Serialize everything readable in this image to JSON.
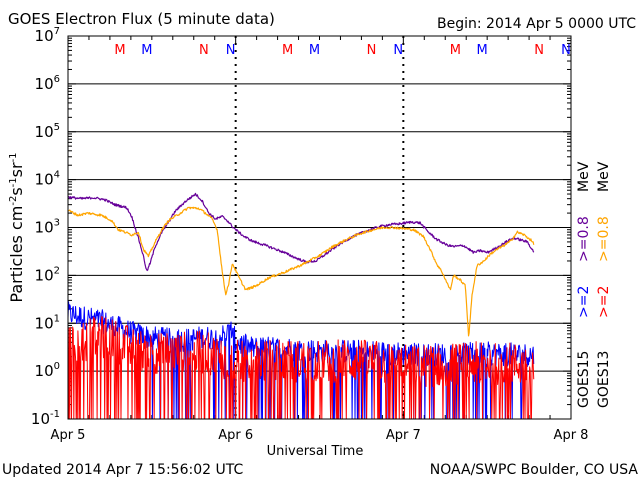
{
  "header": {
    "title": "GOES Electron Flux (5 minute data)",
    "begin": "Begin: 2014 Apr 5 0000 UTC"
  },
  "footer": {
    "updated": "Updated 2014 Apr  7 15:56:02 UTC",
    "source": "NOAA/SWPC Boulder, CO USA"
  },
  "right_labels": {
    "goes13": "GOES13",
    "goes15": "GOES15",
    "e2_goes13": ">=2",
    "e08_goes13": ">=0.8",
    "e2_goes15": ">=2",
    "e08_goes15": ">=0.8",
    "unit": "MeV"
  },
  "colors": {
    "goes15_e08": "#660099",
    "goes13_e08": "#ffa500",
    "goes15_e2": "#0000ff",
    "goes13_e2": "#ff0000",
    "marker_M": "#ff0000",
    "marker_N_red": "#ff0000",
    "marker_N_blue": "#0000ff",
    "marker_M_blue": "#0000ff"
  },
  "chart_data": {
    "type": "line",
    "title": "GOES Electron Flux (5 minute data)",
    "xlabel": "Universal Time",
    "ylabel": "Particles cm⁻²s⁻¹sr⁻¹",
    "y_scale": "log",
    "ylim": [
      0.1,
      10000000
    ],
    "xlim_days": [
      0,
      3
    ],
    "x_ticks": [
      {
        "day": 0,
        "label": "Apr 5"
      },
      {
        "day": 1,
        "label": "Apr 6"
      },
      {
        "day": 2,
        "label": "Apr 7"
      },
      {
        "day": 3,
        "label": "Apr 8"
      }
    ],
    "y_ticks": [
      {
        "exp": -1,
        "mant": "10",
        "sup": "-1"
      },
      {
        "exp": 0,
        "mant": "10",
        "sup": "0"
      },
      {
        "exp": 1,
        "mant": "10",
        "sup": "1"
      },
      {
        "exp": 2,
        "mant": "10",
        "sup": "2"
      },
      {
        "exp": 3,
        "mant": "10",
        "sup": "3"
      },
      {
        "exp": 4,
        "mant": "10",
        "sup": "4"
      },
      {
        "exp": 5,
        "mant": "10",
        "sup": "5"
      },
      {
        "exp": 6,
        "mant": "10",
        "sup": "6"
      },
      {
        "exp": 7,
        "mant": "10",
        "sup": "7"
      }
    ],
    "threshold": 1000,
    "markers": [
      {
        "day": 0.31,
        "label": "M",
        "color": "red"
      },
      {
        "day": 0.47,
        "label": "M",
        "color": "blue"
      },
      {
        "day": 0.81,
        "label": "N",
        "color": "red"
      },
      {
        "day": 0.97,
        "label": "N",
        "color": "blue"
      },
      {
        "day": 1.31,
        "label": "M",
        "color": "red"
      },
      {
        "day": 1.47,
        "label": "M",
        "color": "blue"
      },
      {
        "day": 1.81,
        "label": "N",
        "color": "red"
      },
      {
        "day": 1.97,
        "label": "N",
        "color": "blue"
      },
      {
        "day": 2.31,
        "label": "M",
        "color": "red"
      },
      {
        "day": 2.47,
        "label": "M",
        "color": "blue"
      },
      {
        "day": 2.81,
        "label": "N",
        "color": "red"
      },
      {
        "day": 2.97,
        "label": "N",
        "color": "blue"
      }
    ],
    "series": [
      {
        "name": "GOES15 >=0.8 MeV",
        "key": "g15_e08",
        "color": "#660099",
        "points": [
          [
            0.0,
            4300
          ],
          [
            0.08,
            4000
          ],
          [
            0.15,
            4200
          ],
          [
            0.22,
            3800
          ],
          [
            0.28,
            3000
          ],
          [
            0.35,
            2600
          ],
          [
            0.38,
            1700
          ],
          [
            0.4,
            1000
          ],
          [
            0.42,
            600
          ],
          [
            0.45,
            250
          ],
          [
            0.47,
            120
          ],
          [
            0.49,
            180
          ],
          [
            0.52,
            400
          ],
          [
            0.56,
            800
          ],
          [
            0.6,
            1300
          ],
          [
            0.64,
            2200
          ],
          [
            0.7,
            3500
          ],
          [
            0.76,
            5000
          ],
          [
            0.8,
            3600
          ],
          [
            0.84,
            2000
          ],
          [
            0.88,
            1500
          ],
          [
            0.92,
            1700
          ],
          [
            0.95,
            1400
          ],
          [
            0.98,
            1050
          ],
          [
            1.0,
            900
          ],
          [
            1.05,
            650
          ],
          [
            1.1,
            520
          ],
          [
            1.18,
            420
          ],
          [
            1.28,
            310
          ],
          [
            1.36,
            230
          ],
          [
            1.42,
            190
          ],
          [
            1.48,
            200
          ],
          [
            1.55,
            300
          ],
          [
            1.62,
            450
          ],
          [
            1.7,
            650
          ],
          [
            1.78,
            850
          ],
          [
            1.86,
            1050
          ],
          [
            1.92,
            1150
          ],
          [
            1.98,
            1200
          ],
          [
            2.05,
            1300
          ],
          [
            2.1,
            1250
          ],
          [
            2.15,
            800
          ],
          [
            2.2,
            560
          ],
          [
            2.26,
            430
          ],
          [
            2.3,
            400
          ],
          [
            2.36,
            420
          ],
          [
            2.42,
            300
          ],
          [
            2.46,
            330
          ],
          [
            2.5,
            300
          ],
          [
            2.56,
            380
          ],
          [
            2.62,
            520
          ],
          [
            2.66,
            600
          ],
          [
            2.7,
            550
          ],
          [
            2.74,
            500
          ],
          [
            2.78,
            300
          ]
        ]
      },
      {
        "name": "GOES13 >=0.8 MeV",
        "key": "g13_e08",
        "color": "#ffa500",
        "points": [
          [
            0.0,
            2300
          ],
          [
            0.06,
            1800
          ],
          [
            0.12,
            2000
          ],
          [
            0.2,
            1800
          ],
          [
            0.26,
            1400
          ],
          [
            0.3,
            900
          ],
          [
            0.34,
            800
          ],
          [
            0.38,
            700
          ],
          [
            0.42,
            800
          ],
          [
            0.45,
            350
          ],
          [
            0.48,
            250
          ],
          [
            0.52,
            500
          ],
          [
            0.56,
            900
          ],
          [
            0.6,
            1400
          ],
          [
            0.66,
            1900
          ],
          [
            0.72,
            2600
          ],
          [
            0.78,
            2500
          ],
          [
            0.82,
            2000
          ],
          [
            0.86,
            1500
          ],
          [
            0.89,
            900
          ],
          [
            0.92,
            120
          ],
          [
            0.94,
            40
          ],
          [
            0.96,
            70
          ],
          [
            0.98,
            180
          ],
          [
            1.02,
            90
          ],
          [
            1.06,
            50
          ],
          [
            1.12,
            60
          ],
          [
            1.2,
            90
          ],
          [
            1.3,
            120
          ],
          [
            1.4,
            170
          ],
          [
            1.5,
            260
          ],
          [
            1.58,
            400
          ],
          [
            1.66,
            560
          ],
          [
            1.74,
            740
          ],
          [
            1.82,
            900
          ],
          [
            1.88,
            1000
          ],
          [
            1.94,
            1000
          ],
          [
            2.0,
            950
          ],
          [
            2.06,
            900
          ],
          [
            2.12,
            650
          ],
          [
            2.16,
            350
          ],
          [
            2.2,
            170
          ],
          [
            2.23,
            120
          ],
          [
            2.26,
            70
          ],
          [
            2.28,
            50
          ],
          [
            2.3,
            100
          ],
          [
            2.34,
            80
          ],
          [
            2.37,
            60
          ],
          [
            2.39,
            5
          ],
          [
            2.41,
            40
          ],
          [
            2.44,
            160
          ],
          [
            2.48,
            200
          ],
          [
            2.52,
            280
          ],
          [
            2.56,
            350
          ],
          [
            2.6,
            420
          ],
          [
            2.64,
            520
          ],
          [
            2.68,
            800
          ],
          [
            2.72,
            700
          ],
          [
            2.76,
            550
          ],
          [
            2.78,
            450
          ]
        ]
      },
      {
        "name": "GOES15 >=2 MeV",
        "key": "g15_e2",
        "color": "#0000ff",
        "noisy": true,
        "points": [
          [
            0.0,
            16
          ],
          [
            0.1,
            13
          ],
          [
            0.2,
            11
          ],
          [
            0.3,
            8
          ],
          [
            0.4,
            6
          ],
          [
            0.5,
            5
          ],
          [
            0.6,
            4.5
          ],
          [
            0.7,
            4.5
          ],
          [
            0.8,
            5
          ],
          [
            0.9,
            5
          ],
          [
            0.98,
            7
          ],
          [
            1.0,
            4
          ],
          [
            1.1,
            3
          ],
          [
            1.3,
            3
          ],
          [
            1.5,
            2.6
          ],
          [
            1.7,
            2.6
          ],
          [
            1.9,
            2.4
          ],
          [
            2.1,
            2.2
          ],
          [
            2.3,
            2.2
          ],
          [
            2.5,
            2.3
          ],
          [
            2.7,
            2.2
          ],
          [
            2.78,
            2.2
          ]
        ]
      },
      {
        "name": "GOES13 >=2 MeV",
        "key": "g13_e2",
        "color": "#ff0000",
        "noisy": true,
        "points": [
          [
            0.0,
            4.5
          ],
          [
            0.1,
            5.5
          ],
          [
            0.2,
            6.5
          ],
          [
            0.3,
            5
          ],
          [
            0.4,
            3.5
          ],
          [
            0.5,
            3
          ],
          [
            0.6,
            3
          ],
          [
            0.7,
            3
          ],
          [
            0.8,
            3
          ],
          [
            0.9,
            2.5
          ],
          [
            1.0,
            2
          ],
          [
            1.2,
            2
          ],
          [
            1.4,
            2
          ],
          [
            1.6,
            2
          ],
          [
            1.8,
            2
          ],
          [
            2.0,
            1.6
          ],
          [
            2.2,
            1.6
          ],
          [
            2.4,
            1.8
          ],
          [
            2.6,
            1.8
          ],
          [
            2.78,
            1.6
          ]
        ]
      }
    ]
  }
}
